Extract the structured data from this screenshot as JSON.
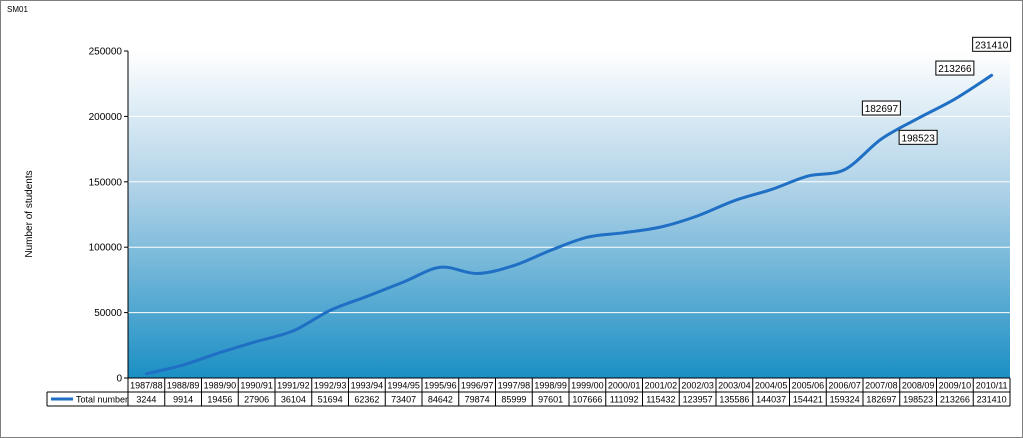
{
  "corner_label": "SM01",
  "chart_data": {
    "type": "line",
    "title": "",
    "xlabel": "",
    "ylabel": "Number of students",
    "ylim": [
      0,
      250000
    ],
    "yticks": [
      0,
      50000,
      100000,
      150000,
      200000,
      250000
    ],
    "grid": true,
    "categories": [
      "1987/88",
      "1988/89",
      "1989/90",
      "1990/91",
      "1991/92",
      "1992/93",
      "1993/94",
      "1994/95",
      "1995/96",
      "1996/97",
      "1997/98",
      "1998/99",
      "1999/00",
      "2000/01",
      "2001/02",
      "2002/03",
      "2003/04",
      "2004/05",
      "2005/06",
      "2006/07",
      "2007/08",
      "2008/09",
      "2009/10",
      "2010/11"
    ],
    "series": [
      {
        "name": "Total number",
        "color": "#1f6fc4",
        "values": [
          3244,
          9914,
          19456,
          27906,
          36104,
          51694,
          62362,
          73407,
          84642,
          79874,
          85999,
          97601,
          107666,
          111092,
          115432,
          123957,
          135586,
          144037,
          154421,
          159324,
          182697,
          198523,
          213266,
          231410
        ]
      }
    ],
    "annotations": [
      {
        "text": "182697",
        "category": "2007/08",
        "placement": "above"
      },
      {
        "text": "198523",
        "category": "2008/09",
        "placement": "below"
      },
      {
        "text": "213266",
        "category": "2009/10",
        "placement": "above"
      },
      {
        "text": "231410",
        "category": "2010/11",
        "placement": "above"
      }
    ],
    "data_table": true
  }
}
